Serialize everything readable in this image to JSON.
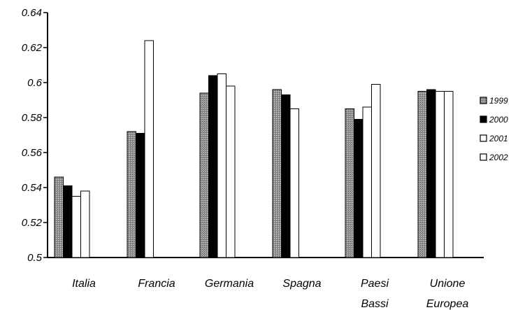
{
  "chart_data": {
    "type": "bar",
    "categories": [
      [
        "Italia"
      ],
      [
        "Francia"
      ],
      [
        "Germania"
      ],
      [
        "Spagna"
      ],
      [
        "Paesi",
        "Bassi"
      ],
      [
        "Unione",
        "Europea"
      ]
    ],
    "series": [
      {
        "name": "1999",
        "values": [
          0.546,
          0.572,
          0.594,
          0.596,
          0.585,
          0.595
        ],
        "color": "#8a8a8a"
      },
      {
        "name": "2000",
        "values": [
          0.541,
          0.571,
          0.604,
          0.593,
          0.579,
          0.596
        ],
        "color": "#000000"
      },
      {
        "name": "2001",
        "values": [
          0.535,
          0.624,
          0.605,
          0.585,
          0.586,
          0.595
        ],
        "color": "#ffffff"
      },
      {
        "name": "2002",
        "values": [
          0.538,
          null,
          0.598,
          null,
          0.599,
          0.595
        ],
        "color": "#ffffff"
      }
    ],
    "ylim": [
      0.5,
      0.64
    ],
    "yticks": [
      "0.5",
      "0.52",
      "0.54",
      "0.56",
      "0.58",
      "0.6",
      "0.62",
      "0.64"
    ],
    "legend_position": "right",
    "grid": false,
    "title": "",
    "xlabel": "",
    "ylabel": ""
  }
}
